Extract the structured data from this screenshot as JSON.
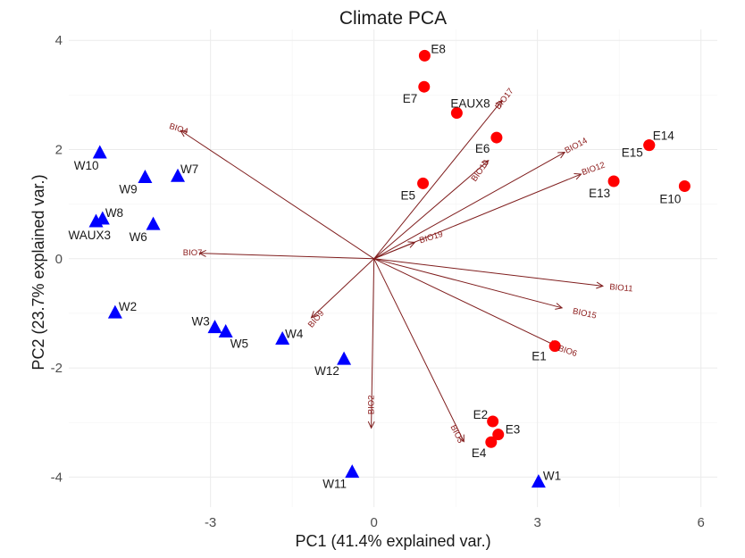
{
  "chart_data": {
    "type": "scatter",
    "title": "Climate PCA",
    "xlabel": "PC1 (41.4% explained var.)",
    "ylabel": "PC2 (23.7% explained var.)",
    "xlim": [
      -5.6,
      6.3
    ],
    "ylim": [
      -4.55,
      4.2
    ],
    "xticks": [
      -3,
      0,
      3,
      6
    ],
    "yticks": [
      -4,
      -2,
      0,
      2,
      4
    ],
    "grid": true,
    "legend": "none",
    "colors": {
      "E": "#ff0000",
      "W": "#0000ff",
      "arrow": "#7f1d1d"
    },
    "series": [
      {
        "group": "E",
        "marker": "circle",
        "points": [
          {
            "label": "E1",
            "x": 3.32,
            "y": -1.6,
            "lx": -26,
            "ly": 16
          },
          {
            "label": "E2",
            "x": 2.18,
            "y": -2.98,
            "lx": -22,
            "ly": -3
          },
          {
            "label": "E3",
            "x": 2.28,
            "y": -3.22,
            "lx": 8,
            "ly": -1
          },
          {
            "label": "E4",
            "x": 2.15,
            "y": -3.36,
            "lx": -22,
            "ly": 17
          },
          {
            "label": "E5",
            "x": 0.9,
            "y": 1.38,
            "lx": -25,
            "ly": 18
          },
          {
            "label": "E6",
            "x": 2.25,
            "y": 2.22,
            "lx": -24,
            "ly": 17
          },
          {
            "label": "E7",
            "x": 0.92,
            "y": 3.15,
            "lx": -24,
            "ly": 18
          },
          {
            "label": "E8",
            "x": 0.93,
            "y": 3.72,
            "lx": 7,
            "ly": -3
          },
          {
            "label": "EAUX8",
            "x": 1.52,
            "y": 2.67,
            "lx": -7,
            "ly": -6
          },
          {
            "label": "E10",
            "x": 5.7,
            "y": 1.33,
            "lx": -28,
            "ly": 19
          },
          {
            "label": "E13",
            "x": 4.4,
            "y": 1.42,
            "lx": -28,
            "ly": 18
          },
          {
            "label": "E14",
            "x": 5.05,
            "y": 2.08,
            "lx": 4,
            "ly": -6
          },
          {
            "label": "E15",
            "x": 5.05,
            "y": 2.08,
            "lx": -31,
            "ly": 13
          }
        ]
      },
      {
        "group": "W",
        "marker": "triangle",
        "points": [
          {
            "label": "W1",
            "x": 3.02,
            "y": -4.1,
            "lx": 5,
            "ly": -3
          },
          {
            "label": "W2",
            "x": -4.75,
            "y": -1.0,
            "lx": 4,
            "ly": -3
          },
          {
            "label": "W3",
            "x": -2.92,
            "y": -1.27,
            "lx": -26,
            "ly": -3
          },
          {
            "label": "W4",
            "x": -1.68,
            "y": -1.48,
            "lx": 3,
            "ly": -2
          },
          {
            "label": "W5",
            "x": -2.72,
            "y": -1.35,
            "lx": 5,
            "ly": 17
          },
          {
            "label": "W6",
            "x": -4.05,
            "y": 0.62,
            "lx": -27,
            "ly": 18
          },
          {
            "label": "W7",
            "x": -3.6,
            "y": 1.5,
            "lx": 3,
            "ly": -4
          },
          {
            "label": "W8",
            "x": -4.98,
            "y": 0.72,
            "lx": 3,
            "ly": -3
          },
          {
            "label": "W9",
            "x": -4.2,
            "y": 1.48,
            "lx": -29,
            "ly": 17
          },
          {
            "label": "W10",
            "x": -5.03,
            "y": 1.93,
            "lx": -29,
            "ly": 18
          },
          {
            "label": "W11",
            "x": -0.4,
            "y": -3.92,
            "lx": -33,
            "ly": 17
          },
          {
            "label": "W12",
            "x": -0.55,
            "y": -1.85,
            "lx": -33,
            "ly": 17
          },
          {
            "label": "WAUX3",
            "x": -5.1,
            "y": 0.67,
            "lx": -31,
            "ly": 19
          }
        ]
      }
    ],
    "loadings": [
      {
        "name": "BIO2",
        "x": -0.05,
        "y": -3.1,
        "pos": 0.9,
        "angle": -90,
        "off": -7
      },
      {
        "name": "BIO3",
        "x": 1.65,
        "y": -3.35,
        "pos": 0.92,
        "angle": 64,
        "off": 8
      },
      {
        "name": "BIO4",
        "x": -3.55,
        "y": 2.35,
        "pos": 1.01,
        "angle": 18,
        "off": 0
      },
      {
        "name": "BIO6",
        "x": 3.35,
        "y": -1.6,
        "pos": 1.06,
        "angle": 18,
        "off": 0
      },
      {
        "name": "BIO7",
        "x": -3.2,
        "y": 0.1,
        "pos": 1.04,
        "angle": 0,
        "off": 0
      },
      {
        "name": "BIO9",
        "x": -1.15,
        "y": -1.08,
        "pos": 0.92,
        "angle": -50,
        "off": 7
      },
      {
        "name": "BIO10",
        "x": 2.1,
        "y": 1.8,
        "pos": 0.93,
        "angle": -55,
        "off": 4
      },
      {
        "name": "BIO11",
        "x": 4.2,
        "y": -0.5,
        "pos": 1.08,
        "angle": 5,
        "off": 0
      },
      {
        "name": "BIO12",
        "x": 3.8,
        "y": 1.55,
        "pos": 1.06,
        "angle": -20,
        "off": 0
      },
      {
        "name": "BIO14",
        "x": 3.5,
        "y": 1.95,
        "pos": 1.06,
        "angle": -28,
        "off": 0
      },
      {
        "name": "BIO15",
        "x": 3.45,
        "y": -0.9,
        "pos": 1.12,
        "angle": 12,
        "off": 0
      },
      {
        "name": "BIO17",
        "x": 2.35,
        "y": 2.9,
        "pos": 1.02,
        "angle": -52,
        "off": 2
      },
      {
        "name": "BIO19",
        "x": 0.75,
        "y": 0.3,
        "pos": 1.4,
        "angle": -17,
        "off": 2
      }
    ]
  }
}
